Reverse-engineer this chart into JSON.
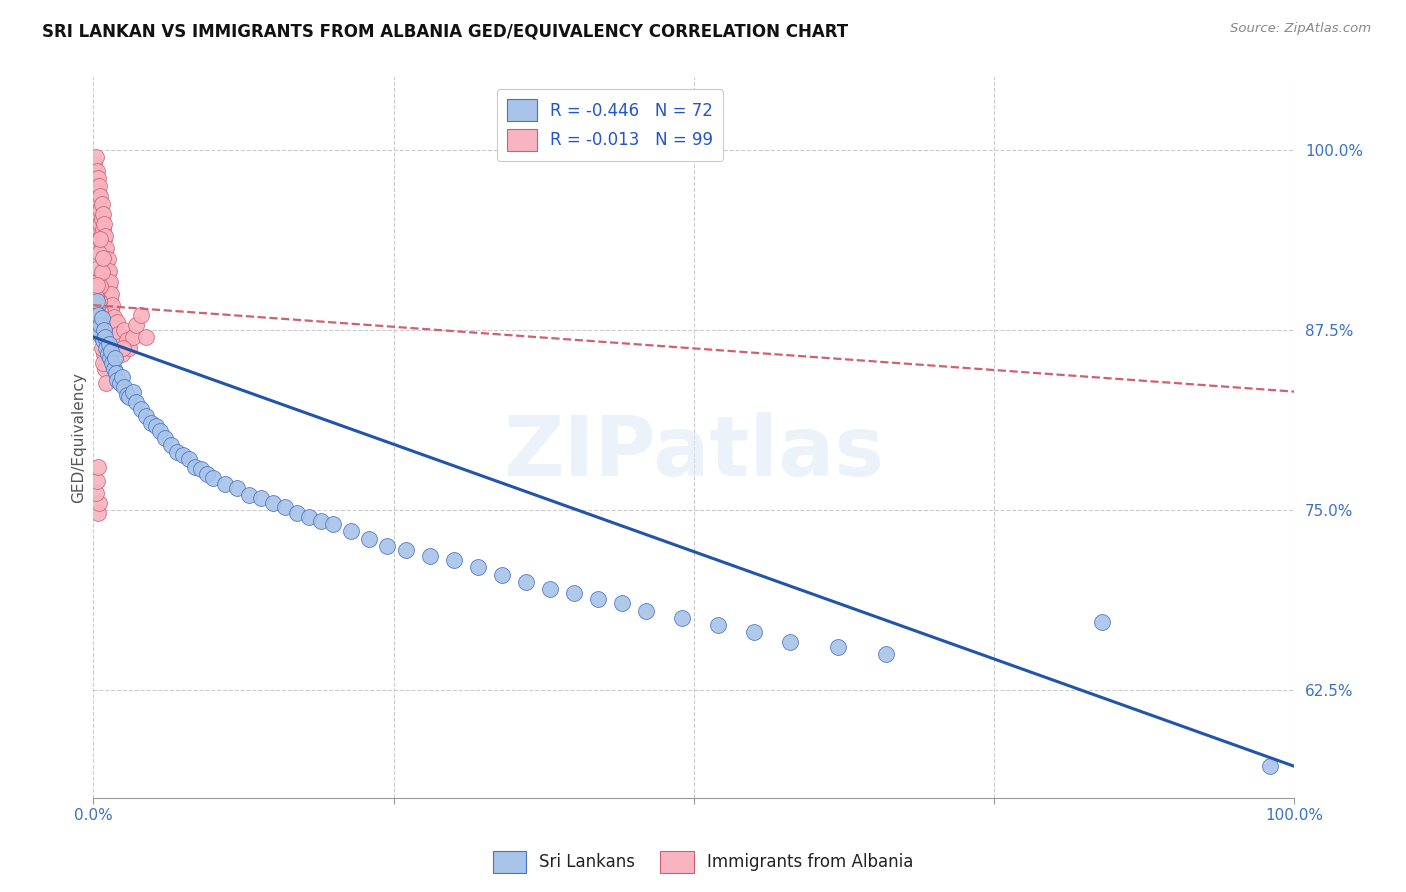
{
  "title": "SRI LANKAN VS IMMIGRANTS FROM ALBANIA GED/EQUIVALENCY CORRELATION CHART",
  "source": "Source: ZipAtlas.com",
  "ylabel": "GED/Equivalency",
  "yticks": [
    "62.5%",
    "75.0%",
    "87.5%",
    "100.0%"
  ],
  "ytick_vals": [
    0.625,
    0.75,
    0.875,
    1.0
  ],
  "xlim": [
    0.0,
    1.0
  ],
  "ylim": [
    0.55,
    1.05
  ],
  "watermark": "ZIPatlas",
  "sri_lanka_R": "-0.446",
  "sri_lanka_N": "72",
  "albania_R": "-0.013",
  "albania_N": "99",
  "legend_sri_label": "Sri Lankans",
  "legend_alb_label": "Immigrants from Albania",
  "sri_color": "#a8c4e8",
  "sri_edge_color": "#4472c4",
  "sri_line_color": "#2255aa",
  "alb_color": "#f8b4c0",
  "alb_edge_color": "#d06070",
  "alb_line_color": "#d06070",
  "sri_line_x0": 0.0,
  "sri_line_x1": 1.0,
  "sri_line_y0": 0.87,
  "sri_line_y1": 0.572,
  "alb_line_x0": 0.0,
  "alb_line_x1": 1.0,
  "alb_line_y0": 0.892,
  "alb_line_y1": 0.832,
  "sri_x": [
    0.002,
    0.003,
    0.004,
    0.005,
    0.006,
    0.007,
    0.008,
    0.009,
    0.01,
    0.011,
    0.012,
    0.013,
    0.014,
    0.015,
    0.016,
    0.017,
    0.018,
    0.019,
    0.02,
    0.022,
    0.024,
    0.026,
    0.028,
    0.03,
    0.033,
    0.036,
    0.04,
    0.044,
    0.048,
    0.052,
    0.056,
    0.06,
    0.065,
    0.07,
    0.075,
    0.08,
    0.085,
    0.09,
    0.095,
    0.1,
    0.11,
    0.12,
    0.13,
    0.14,
    0.15,
    0.16,
    0.17,
    0.18,
    0.19,
    0.2,
    0.215,
    0.23,
    0.245,
    0.26,
    0.28,
    0.3,
    0.32,
    0.34,
    0.36,
    0.38,
    0.4,
    0.42,
    0.44,
    0.46,
    0.49,
    0.52,
    0.55,
    0.58,
    0.62,
    0.66,
    0.84,
    0.98
  ],
  "sri_y": [
    0.88,
    0.895,
    0.885,
    0.872,
    0.878,
    0.883,
    0.868,
    0.875,
    0.87,
    0.862,
    0.858,
    0.865,
    0.855,
    0.86,
    0.852,
    0.848,
    0.855,
    0.845,
    0.84,
    0.838,
    0.842,
    0.835,
    0.83,
    0.828,
    0.832,
    0.825,
    0.82,
    0.815,
    0.81,
    0.808,
    0.805,
    0.8,
    0.795,
    0.79,
    0.788,
    0.785,
    0.78,
    0.778,
    0.775,
    0.772,
    0.768,
    0.765,
    0.76,
    0.758,
    0.755,
    0.752,
    0.748,
    0.745,
    0.742,
    0.74,
    0.735,
    0.73,
    0.725,
    0.722,
    0.718,
    0.715,
    0.71,
    0.705,
    0.7,
    0.695,
    0.692,
    0.688,
    0.685,
    0.68,
    0.675,
    0.67,
    0.665,
    0.658,
    0.655,
    0.65,
    0.672,
    0.572
  ],
  "alb_x": [
    0.001,
    0.001,
    0.001,
    0.002,
    0.002,
    0.002,
    0.002,
    0.003,
    0.003,
    0.003,
    0.003,
    0.003,
    0.004,
    0.004,
    0.004,
    0.004,
    0.005,
    0.005,
    0.005,
    0.005,
    0.005,
    0.006,
    0.006,
    0.006,
    0.006,
    0.007,
    0.007,
    0.007,
    0.007,
    0.008,
    0.008,
    0.008,
    0.008,
    0.009,
    0.009,
    0.009,
    0.01,
    0.01,
    0.01,
    0.011,
    0.011,
    0.012,
    0.012,
    0.013,
    0.013,
    0.014,
    0.014,
    0.015,
    0.015,
    0.016,
    0.017,
    0.018,
    0.019,
    0.02,
    0.021,
    0.022,
    0.024,
    0.026,
    0.028,
    0.03,
    0.033,
    0.036,
    0.04,
    0.044,
    0.003,
    0.004,
    0.005,
    0.006,
    0.007,
    0.008,
    0.009,
    0.01,
    0.011,
    0.002,
    0.003,
    0.004,
    0.005,
    0.006,
    0.007,
    0.008,
    0.003,
    0.004,
    0.005,
    0.006,
    0.003,
    0.004,
    0.005,
    0.006,
    0.007,
    0.008,
    0.004,
    0.005,
    0.002,
    0.003,
    0.004,
    0.001,
    0.002,
    0.003,
    0.025
  ],
  "alb_y": [
    0.99,
    0.975,
    0.985,
    0.995,
    0.98,
    0.97,
    0.96,
    0.985,
    0.975,
    0.965,
    0.955,
    0.945,
    0.98,
    0.97,
    0.96,
    0.95,
    0.975,
    0.965,
    0.955,
    0.945,
    0.935,
    0.968,
    0.958,
    0.948,
    0.938,
    0.962,
    0.952,
    0.942,
    0.932,
    0.955,
    0.945,
    0.935,
    0.925,
    0.948,
    0.938,
    0.928,
    0.94,
    0.93,
    0.92,
    0.932,
    0.922,
    0.924,
    0.914,
    0.916,
    0.906,
    0.908,
    0.898,
    0.9,
    0.89,
    0.892,
    0.884,
    0.876,
    0.868,
    0.88,
    0.872,
    0.864,
    0.858,
    0.875,
    0.868,
    0.862,
    0.87,
    0.878,
    0.885,
    0.87,
    0.89,
    0.905,
    0.895,
    0.888,
    0.878,
    0.868,
    0.858,
    0.848,
    0.838,
    0.912,
    0.902,
    0.892,
    0.882,
    0.872,
    0.862,
    0.852,
    0.908,
    0.918,
    0.928,
    0.938,
    0.875,
    0.885,
    0.895,
    0.905,
    0.915,
    0.925,
    0.748,
    0.755,
    0.762,
    0.77,
    0.78,
    0.89,
    0.898,
    0.906,
    0.862
  ]
}
